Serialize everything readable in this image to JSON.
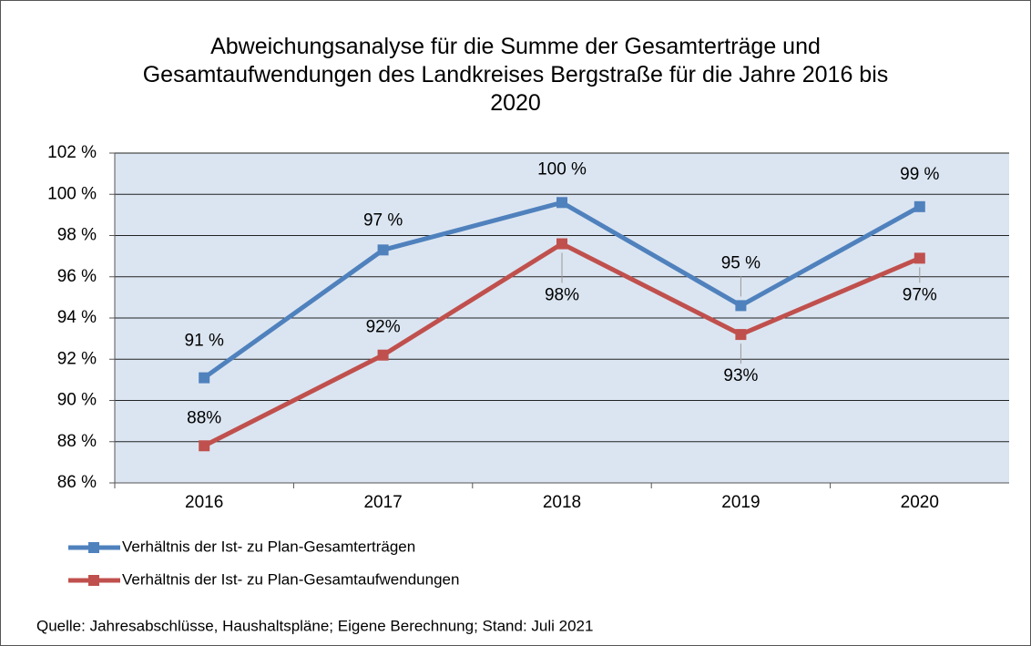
{
  "chart_data": {
    "type": "line",
    "title": "Abweichungsanalyse für die Summe der Gesamterträge und Gesamtaufwendungen des Landkreises Bergstraße für die Jahre 2016 bis 2020",
    "categories": [
      "2016",
      "2017",
      "2018",
      "2019",
      "2020"
    ],
    "series": [
      {
        "name": "Verhältnis der Ist- zu Plan-Gesamterträgen",
        "color": "#4f81bd",
        "values": [
          91.1,
          97.3,
          99.6,
          94.6,
          99.4
        ],
        "value_labels": [
          "91 %",
          "97 %",
          "100 %",
          "95 %",
          "99 %"
        ]
      },
      {
        "name": "Verhältnis der Ist- zu Plan-Gesamtaufwendungen",
        "color": "#c0504d",
        "values": [
          87.8,
          92.2,
          97.6,
          93.2,
          96.9
        ],
        "value_labels": [
          "88%",
          "92%",
          "98%",
          "93%",
          "97%"
        ]
      }
    ],
    "ylim": [
      86,
      102
    ],
    "yticks": [
      {
        "value": 86,
        "label": "86 %"
      },
      {
        "value": 88,
        "label": "88 %"
      },
      {
        "value": 90,
        "label": "90 %"
      },
      {
        "value": 92,
        "label": "92 %"
      },
      {
        "value": 94,
        "label": "94 %"
      },
      {
        "value": 96,
        "label": "96 %"
      },
      {
        "value": 98,
        "label": "98 %"
      },
      {
        "value": 100,
        "label": "100 %"
      },
      {
        "value": 102,
        "label": "102 %"
      }
    ],
    "grid": true,
    "legend": "bottom",
    "source": "Quelle: Jahresabschlüsse, Haushaltspläne; Eigene Berechnung; Stand: Juli 2021"
  }
}
